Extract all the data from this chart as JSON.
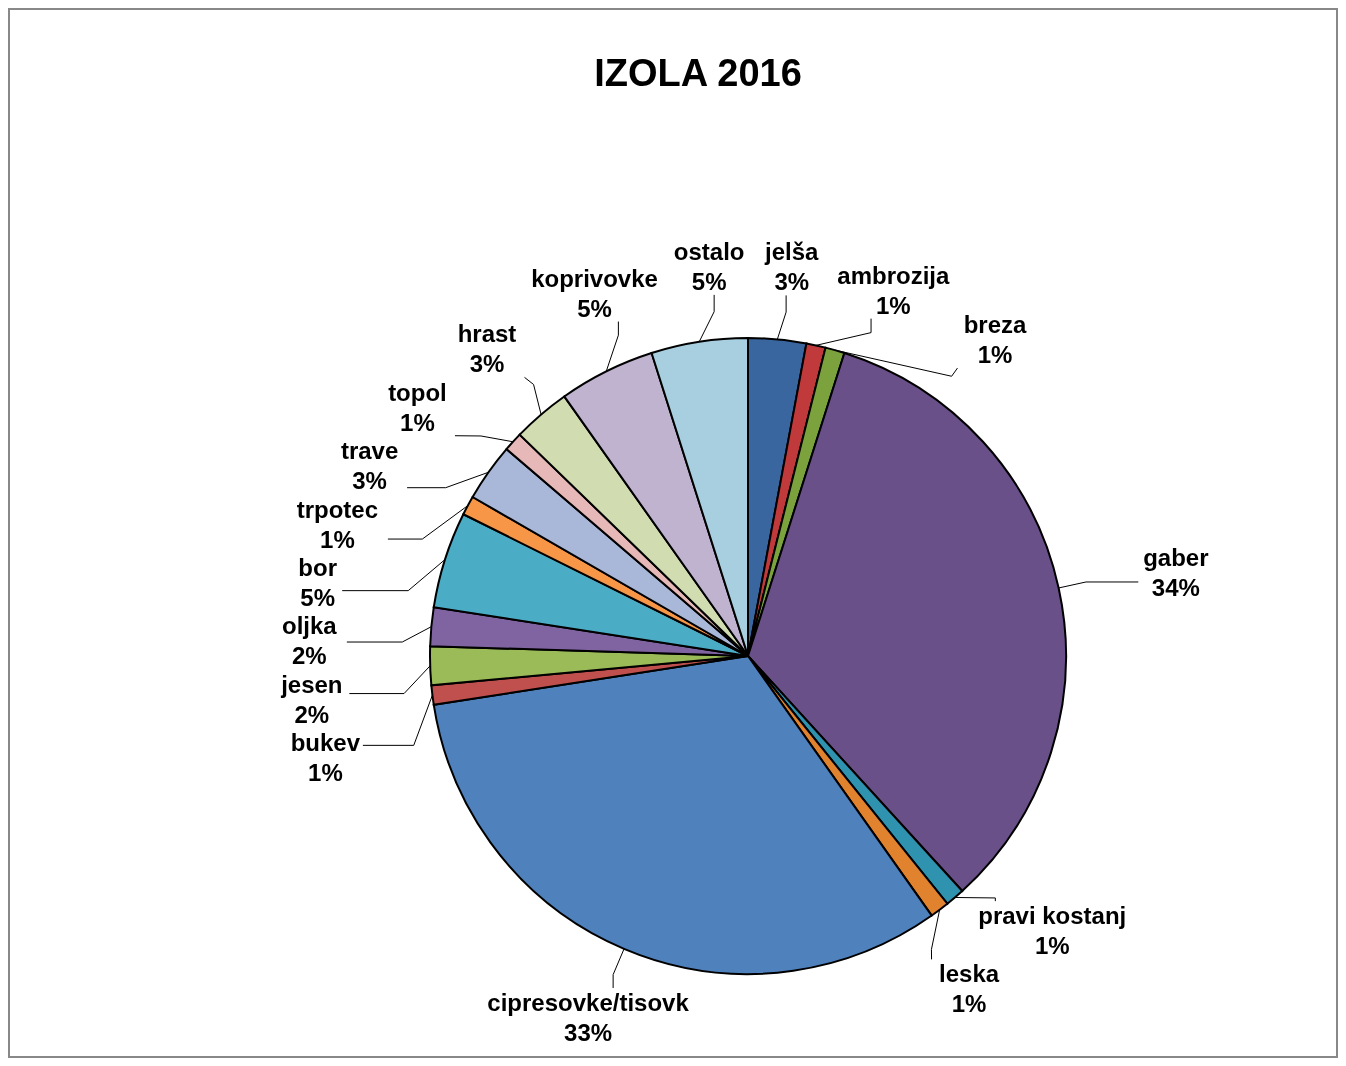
{
  "chart_data": {
    "type": "pie",
    "title": "IZOLA 2016",
    "categories": [
      "jelša",
      "ambrozija",
      "breza",
      "gaber",
      "pravi kostanj",
      "leska",
      "cipresovke/tisovk",
      "bukev",
      "jesen",
      "oljka",
      "bor",
      "trpotec",
      "trave",
      "topol",
      "hrast",
      "koprivovke",
      "ostalo"
    ],
    "values": [
      3,
      1,
      1,
      34,
      1,
      1,
      33,
      1,
      2,
      2,
      5,
      1,
      3,
      1,
      3,
      5,
      5
    ],
    "value_labels": [
      "3%",
      "1%",
      "1%",
      "34%",
      "1%",
      "1%",
      "33%",
      "1%",
      "2%",
      "2%",
      "5%",
      "1%",
      "3%",
      "1%",
      "3%",
      "5%",
      "5%"
    ],
    "colors": [
      "#3a66a0",
      "#c0393b",
      "#7ba23c",
      "#6a5088",
      "#2f93b0",
      "#e0822e",
      "#4f81bd",
      "#c0504d",
      "#9bbb59",
      "#8064a2",
      "#4bacc6",
      "#f79646",
      "#a9b8d8",
      "#e6b9b8",
      "#d1ddb0",
      "#c0b3d0",
      "#a8cfe0"
    ]
  }
}
